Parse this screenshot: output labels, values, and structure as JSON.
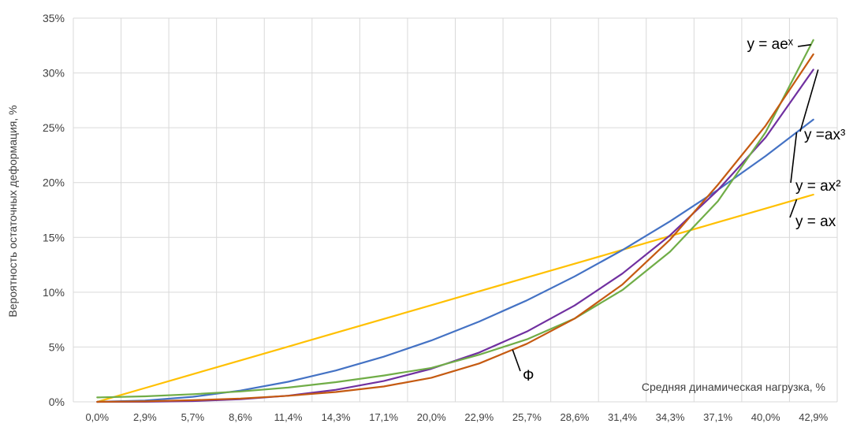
{
  "chart_data": {
    "type": "line",
    "ylabel": "Вероятность остаточных деформация, %",
    "xlabel": "Средняя динамическая нагрузка, %",
    "categories": [
      "0,0%",
      "2,9%",
      "5,7%",
      "8,6%",
      "11,4%",
      "14,3%",
      "17,1%",
      "20,0%",
      "22,9%",
      "25,7%",
      "28,6%",
      "31,4%",
      "34,3%",
      "37,1%",
      "40,0%",
      "42,9%"
    ],
    "yticks": [
      "0%",
      "5%",
      "10%",
      "15%",
      "20%",
      "25%",
      "30%",
      "35%"
    ],
    "ylim": [
      0,
      35
    ],
    "grid": true,
    "series": [
      {
        "label": "y = ax",
        "color": "#FFC000",
        "values": [
          0.0,
          1.26,
          2.52,
          3.78,
          5.04,
          6.3,
          7.56,
          8.82,
          10.08,
          11.34,
          12.6,
          13.86,
          15.12,
          16.38,
          17.64,
          18.9
        ]
      },
      {
        "label": "y = ax²",
        "color": "#4472C4",
        "values": [
          0.0,
          0.12,
          0.46,
          1.03,
          1.83,
          2.86,
          4.12,
          5.6,
          7.32,
          9.26,
          11.44,
          13.84,
          16.47,
          19.33,
          22.42,
          25.74
        ]
      },
      {
        "label": "y =ax³",
        "color": "#7030A0",
        "values": [
          0.0,
          0.01,
          0.07,
          0.24,
          0.56,
          1.1,
          1.9,
          3.02,
          4.5,
          6.41,
          8.79,
          11.7,
          15.19,
          19.31,
          24.12,
          30.3
        ]
      },
      {
        "label": "y = aeˣ",
        "color": "#70AD47",
        "values": [
          0.4,
          0.5,
          0.7,
          0.95,
          1.3,
          1.8,
          2.4,
          3.1,
          4.3,
          5.7,
          7.6,
          10.2,
          13.7,
          18.3,
          24.6,
          33.0
        ]
      },
      {
        "label": "Ф",
        "color": "#C55A11",
        "values": [
          0.0,
          0.05,
          0.15,
          0.3,
          0.55,
          0.9,
          1.4,
          2.2,
          3.5,
          5.3,
          7.6,
          10.7,
          14.8,
          19.8,
          25.2,
          31.7
        ]
      }
    ]
  }
}
